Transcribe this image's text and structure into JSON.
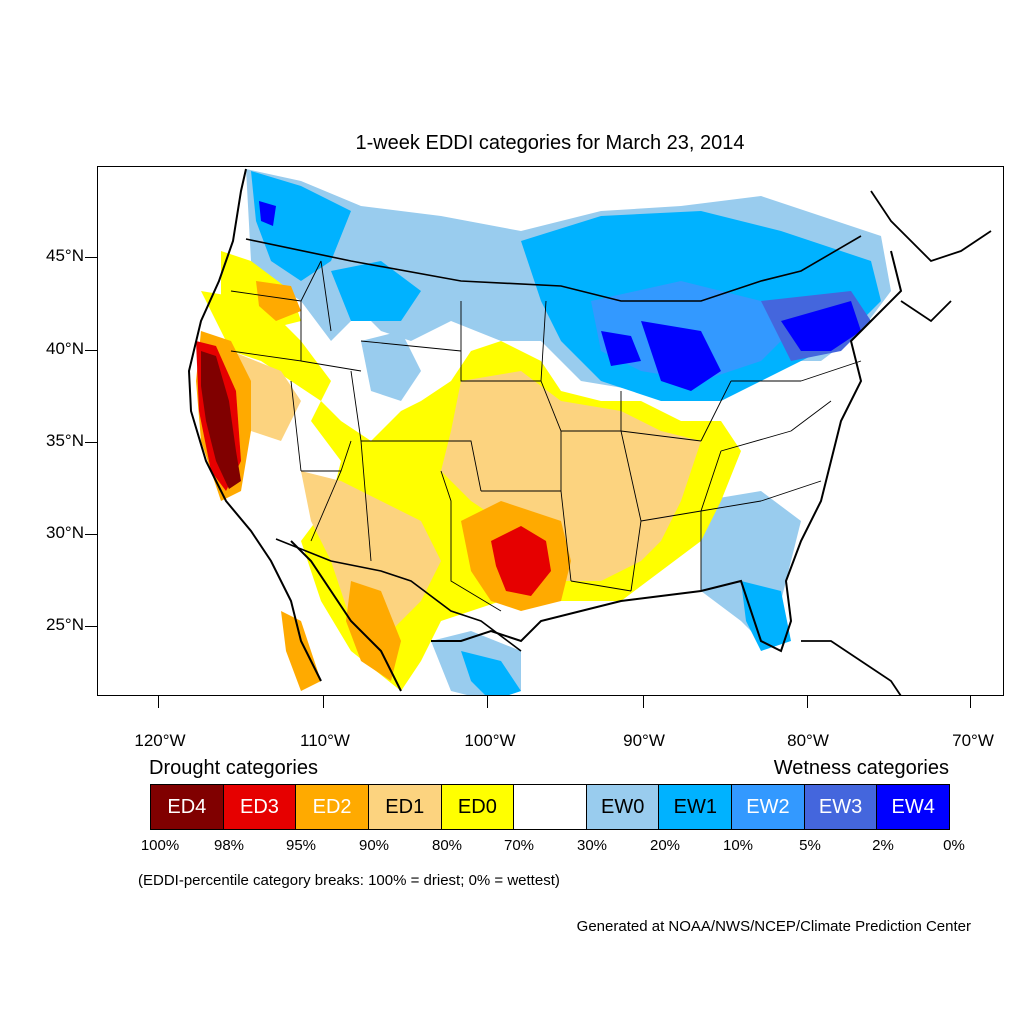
{
  "title": "1-week EDDI categories for March 23, 2014",
  "map": {
    "projection": "lambert-conformal-usa",
    "lat_labels": [
      "45°N",
      "40°N",
      "35°N",
      "30°N",
      "25°N"
    ],
    "lon_labels": [
      "120°W",
      "110°W",
      "100°W",
      "90°W",
      "80°W",
      "70°W"
    ],
    "colors": {
      "ED4": "#800000",
      "ED3": "#e60000",
      "ED2": "#ffaa00",
      "ED1": "#fcd37f",
      "ED0": "#ffff00",
      "neutral": "#ffffff",
      "EW0": "#99ccee",
      "EW1": "#00b2ff",
      "EW2": "#3399ff",
      "EW3": "#4466dd",
      "EW4": "#0000ff"
    },
    "regions": [
      {
        "category": "ED4",
        "area": "central California"
      },
      {
        "category": "ED3",
        "area": "central Texas and coastal California"
      },
      {
        "category": "ED2",
        "area": "Texas, California, Nevada, eastern Oregon"
      },
      {
        "category": "ED1",
        "area": "southern Plains, Kansas to Arkansas"
      },
      {
        "category": "ED0",
        "area": "Great Plains, Southwest, Ohio Valley"
      },
      {
        "category": "EW0",
        "area": "northern tier and Southeast"
      },
      {
        "category": "EW1",
        "area": "Great Lakes, northern Rockies, Florida"
      },
      {
        "category": "EW4",
        "area": "Great Lakes and Northeast"
      }
    ]
  },
  "legend": {
    "drought_heading": "Drought categories",
    "wetness_heading": "Wetness categories",
    "boxes": [
      {
        "label": "ED4",
        "color": "#800000",
        "text_color": "#ffffff"
      },
      {
        "label": "ED3",
        "color": "#e60000",
        "text_color": "#ffffff"
      },
      {
        "label": "ED2",
        "color": "#ffaa00",
        "text_color": "#ffffff"
      },
      {
        "label": "ED1",
        "color": "#fcd37f",
        "text_color": "#000000"
      },
      {
        "label": "ED0",
        "color": "#ffff00",
        "text_color": "#000000"
      },
      {
        "label": "",
        "color": "#ffffff",
        "text_color": "#000000"
      },
      {
        "label": "EW0",
        "color": "#99ccee",
        "text_color": "#000000"
      },
      {
        "label": "EW1",
        "color": "#00b2ff",
        "text_color": "#000000"
      },
      {
        "label": "EW2",
        "color": "#3399ff",
        "text_color": "#ffffff"
      },
      {
        "label": "EW3",
        "color": "#4466dd",
        "text_color": "#ffffff"
      },
      {
        "label": "EW4",
        "color": "#0000ff",
        "text_color": "#ffffff"
      }
    ],
    "percent_labels": [
      "100%",
      "98%",
      "95%",
      "90%",
      "80%",
      "70%",
      "30%",
      "20%",
      "10%",
      "5%",
      "2%",
      "0%"
    ]
  },
  "breaks_note": "(EDDI-percentile category breaks: 100% = driest; 0% = wettest)",
  "credit": "Generated at NOAA/NWS/NCEP/Climate Prediction Center"
}
